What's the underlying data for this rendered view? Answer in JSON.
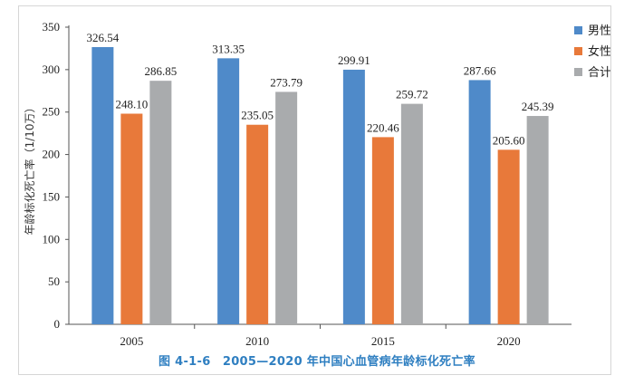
{
  "chart_data": {
    "type": "bar",
    "categories": [
      "2005",
      "2010",
      "2015",
      "2020"
    ],
    "series": [
      {
        "name": "男性",
        "color": "#4f8ac9",
        "values": [
          326.54,
          313.35,
          299.91,
          287.66
        ],
        "labels": [
          "326.54",
          "313.35",
          "299.91",
          "287.66"
        ]
      },
      {
        "name": "女性",
        "color": "#e8793a",
        "values": [
          248.1,
          235.05,
          220.46,
          205.6
        ],
        "labels": [
          "248.10",
          "235.05",
          "220.46",
          "205.60"
        ]
      },
      {
        "name": "合计",
        "color": "#a9abad",
        "values": [
          286.85,
          273.79,
          259.72,
          245.39
        ],
        "labels": [
          "286.85",
          "273.79",
          "259.72",
          "245.39"
        ]
      }
    ],
    "ylabel": "年龄标化死亡率（1/10万）",
    "ylim": [
      0,
      350
    ],
    "yticks": [
      "0",
      "50",
      "100",
      "150",
      "200",
      "250",
      "300",
      "350"
    ],
    "legend_position": "right"
  },
  "caption": "图 4-1-6　2005—2020 年中国心血管病年龄标化死亡率"
}
